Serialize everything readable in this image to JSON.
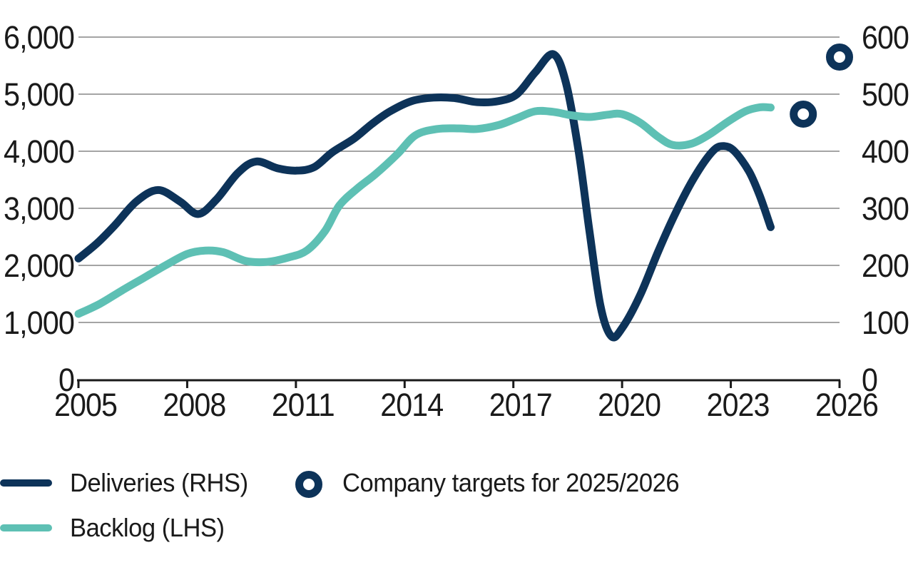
{
  "page": {
    "background": "#ffffff"
  },
  "colors": {
    "navy": "#0d3359",
    "teal": "#5ec0b4",
    "grid": "#6e6e6e",
    "axis_line": "#1a1a1a",
    "text": "#1a1a1a"
  },
  "legend": {
    "row1_left_label": "Deliveries (RHS)",
    "row1_right_label": "Company targets for 2025/2026",
    "row2_left_label": "Backlog (LHS)"
  },
  "chart_data": {
    "type": "line",
    "title": "",
    "grid": "horizontal-only",
    "x_axis": {
      "range": [
        2005,
        2026
      ],
      "ticks": [
        "2005",
        "2008",
        "2011",
        "2014",
        "2017",
        "2020",
        "2023",
        "2026"
      ],
      "tick_years": [
        2005,
        2008,
        2011,
        2014,
        2017,
        2020,
        2023,
        2026
      ]
    },
    "left_axis": {
      "range": [
        0,
        6000
      ],
      "tick_step": 1000,
      "ticks": [
        "0",
        "1,000",
        "2,000",
        "3,000",
        "4,000",
        "5,000",
        "6,000"
      ],
      "applies_to": "Backlog (LHS)"
    },
    "right_axis": {
      "range": [
        0,
        600
      ],
      "tick_step": 100,
      "ticks": [
        "0",
        "100",
        "200",
        "300",
        "400",
        "500",
        "600"
      ],
      "applies_to": "Deliveries (RHS)"
    },
    "series": [
      {
        "name": "Deliveries (RHS)",
        "type": "line",
        "axis": "right",
        "color": "navy",
        "approx_yearly_values": {
          "2005": 212,
          "2006": 270,
          "2007": 330,
          "2008": 292,
          "2009": 370,
          "2010": 378,
          "2011": 366,
          "2012": 398,
          "2013": 448,
          "2014": 488,
          "2015": 494,
          "2016": 486,
          "2017": 500,
          "2018": 570,
          "2019": 230,
          "2020": 90,
          "2021": 225,
          "2022": 355,
          "2023": 400,
          "2024": 270
        },
        "points": [
          [
            2005.0,
            212
          ],
          [
            2005.5,
            238
          ],
          [
            2006.0,
            270
          ],
          [
            2006.6,
            312
          ],
          [
            2007.2,
            332
          ],
          [
            2007.8,
            312
          ],
          [
            2008.3,
            290
          ],
          [
            2008.8,
            315
          ],
          [
            2009.4,
            362
          ],
          [
            2009.9,
            382
          ],
          [
            2010.5,
            370
          ],
          [
            2011.0,
            366
          ],
          [
            2011.5,
            372
          ],
          [
            2012.0,
            398
          ],
          [
            2012.6,
            422
          ],
          [
            2013.1,
            448
          ],
          [
            2013.6,
            470
          ],
          [
            2014.2,
            488
          ],
          [
            2014.8,
            494
          ],
          [
            2015.4,
            493
          ],
          [
            2016.0,
            486
          ],
          [
            2016.6,
            488
          ],
          [
            2017.1,
            500
          ],
          [
            2017.6,
            538
          ],
          [
            2018.1,
            570
          ],
          [
            2018.45,
            520
          ],
          [
            2018.8,
            400
          ],
          [
            2019.1,
            260
          ],
          [
            2019.4,
            130
          ],
          [
            2019.7,
            76
          ],
          [
            2020.0,
            90
          ],
          [
            2020.5,
            148
          ],
          [
            2021.0,
            225
          ],
          [
            2021.5,
            295
          ],
          [
            2022.0,
            355
          ],
          [
            2022.5,
            400
          ],
          [
            2022.8,
            409
          ],
          [
            2023.1,
            400
          ],
          [
            2023.5,
            365
          ],
          [
            2023.8,
            322
          ],
          [
            2024.1,
            267
          ]
        ]
      },
      {
        "name": "Backlog (LHS)",
        "type": "line",
        "axis": "left",
        "color": "teal",
        "approx_yearly_values": {
          "2005": 1150,
          "2006": 1500,
          "2007": 1870,
          "2008": 2200,
          "2009": 2230,
          "2010": 2060,
          "2011": 2220,
          "2012": 2900,
          "2013": 3550,
          "2014": 4200,
          "2015": 4400,
          "2016": 4390,
          "2017": 4560,
          "2018": 4690,
          "2019": 4600,
          "2020": 4650,
          "2021": 4250,
          "2022": 4250,
          "2023": 4620,
          "2024": 4765
        },
        "points": [
          [
            2005.0,
            1150
          ],
          [
            2005.6,
            1330
          ],
          [
            2006.2,
            1560
          ],
          [
            2006.8,
            1780
          ],
          [
            2007.4,
            2000
          ],
          [
            2008.0,
            2200
          ],
          [
            2008.5,
            2260
          ],
          [
            2009.0,
            2230
          ],
          [
            2009.6,
            2080
          ],
          [
            2010.2,
            2060
          ],
          [
            2010.8,
            2140
          ],
          [
            2011.3,
            2260
          ],
          [
            2011.8,
            2600
          ],
          [
            2012.2,
            3050
          ],
          [
            2012.7,
            3350
          ],
          [
            2013.2,
            3600
          ],
          [
            2013.8,
            3950
          ],
          [
            2014.3,
            4280
          ],
          [
            2014.9,
            4390
          ],
          [
            2015.5,
            4400
          ],
          [
            2016.0,
            4390
          ],
          [
            2016.6,
            4460
          ],
          [
            2017.1,
            4580
          ],
          [
            2017.6,
            4700
          ],
          [
            2018.1,
            4690
          ],
          [
            2018.6,
            4630
          ],
          [
            2019.1,
            4600
          ],
          [
            2019.6,
            4640
          ],
          [
            2020.0,
            4650
          ],
          [
            2020.5,
            4500
          ],
          [
            2021.0,
            4250
          ],
          [
            2021.4,
            4110
          ],
          [
            2021.9,
            4130
          ],
          [
            2022.4,
            4290
          ],
          [
            2022.9,
            4510
          ],
          [
            2023.4,
            4700
          ],
          [
            2023.8,
            4770
          ],
          [
            2024.1,
            4765
          ]
        ]
      },
      {
        "name": "Company targets for 2025/2026",
        "type": "scatter",
        "marker": "ring",
        "axis": "right",
        "color": "navy",
        "points": [
          [
            2025,
            465
          ],
          [
            2026,
            565
          ]
        ]
      }
    ]
  }
}
